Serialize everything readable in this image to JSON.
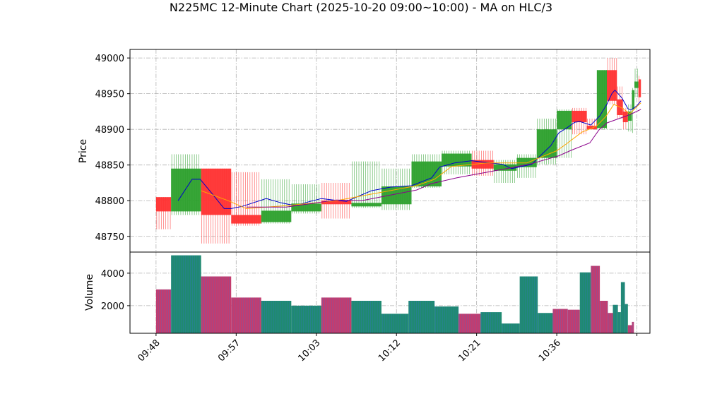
{
  "chart_data": {
    "type": "candlestick",
    "title": "N225MC 12-Minute Chart (2025-10-20 09:00~10:00) - MA on HLC/3",
    "xlabel": "",
    "price_panel": {
      "ylabel": "Price",
      "ylim": [
        48728,
        49012
      ],
      "yticks": [
        48750,
        48800,
        48850,
        48900,
        48950,
        49000
      ],
      "grid": true,
      "up_color": "#2ca02c",
      "down_color": "#ff3030",
      "candles": [
        {
          "t": 0,
          "w": 1.5,
          "open": 48805,
          "high": 48805,
          "low": 48760,
          "close": 48785
        },
        {
          "t": 1.5,
          "w": 3.0,
          "open": 48785,
          "high": 48865,
          "low": 48780,
          "close": 48845
        },
        {
          "t": 4.5,
          "w": 3.0,
          "open": 48845,
          "high": 48845,
          "low": 48740,
          "close": 48780
        },
        {
          "t": 7.5,
          "w": 3.0,
          "open": 48780,
          "high": 48840,
          "low": 48765,
          "close": 48768
        },
        {
          "t": 10.5,
          "w": 3.0,
          "open": 48770,
          "high": 48830,
          "low": 48768,
          "close": 48786
        },
        {
          "t": 13.5,
          "w": 3.0,
          "open": 48785,
          "high": 48823,
          "low": 48782,
          "close": 48796
        },
        {
          "t": 16.5,
          "w": 3.0,
          "open": 48800,
          "high": 48825,
          "low": 48775,
          "close": 48795
        },
        {
          "t": 19.5,
          "w": 3.0,
          "open": 48792,
          "high": 48855,
          "low": 48790,
          "close": 48797
        },
        {
          "t": 22.5,
          "w": 3.0,
          "open": 48795,
          "high": 48845,
          "low": 48787,
          "close": 48820
        },
        {
          "t": 25.5,
          "w": 3.0,
          "open": 48820,
          "high": 48865,
          "low": 48818,
          "close": 48855
        },
        {
          "t": 28.5,
          "w": 3.0,
          "open": 48848,
          "high": 48870,
          "low": 48837,
          "close": 48866
        },
        {
          "t": 31.5,
          "w": 2.2,
          "open": 48857,
          "high": 48870,
          "low": 48835,
          "close": 48845
        },
        {
          "t": 33.7,
          "w": 2.3,
          "open": 48842,
          "high": 48857,
          "low": 48825,
          "close": 48851
        },
        {
          "t": 36.0,
          "w": 2.0,
          "open": 48847,
          "high": 48865,
          "low": 48832,
          "close": 48860
        },
        {
          "t": 38.0,
          "w": 2.0,
          "open": 48860,
          "high": 48915,
          "low": 48851,
          "close": 48900
        },
        {
          "t": 40.0,
          "w": 1.5,
          "open": 48900,
          "high": 48928,
          "low": 48860,
          "close": 48926
        },
        {
          "t": 41.5,
          "w": 1.5,
          "open": 48926,
          "high": 48930,
          "low": 48893,
          "close": 48910
        },
        {
          "t": 43.0,
          "w": 1.0,
          "open": 48905,
          "high": 48915,
          "low": 48900,
          "close": 48900
        },
        {
          "t": 44.0,
          "w": 1.0,
          "open": 48902,
          "high": 48983,
          "low": 48900,
          "close": 48983
        },
        {
          "t": 45.0,
          "w": 1.0,
          "open": 48983,
          "high": 49000,
          "low": 48935,
          "close": 48940
        },
        {
          "t": 46.0,
          "w": 0.6,
          "open": 48942,
          "high": 48960,
          "low": 48915,
          "close": 48920
        },
        {
          "t": 46.6,
          "w": 0.5,
          "open": 48925,
          "high": 48930,
          "low": 48900,
          "close": 48910
        },
        {
          "t": 47.1,
          "w": 0.4,
          "open": 48912,
          "high": 48935,
          "low": 48897,
          "close": 48925
        },
        {
          "t": 47.5,
          "w": 0.25,
          "open": 48928,
          "high": 48958,
          "low": 48895,
          "close": 48955
        },
        {
          "t": 47.75,
          "w": 0.4,
          "open": 48958,
          "high": 48985,
          "low": 48945,
          "close": 48967
        },
        {
          "t": 48.15,
          "w": 0.25,
          "open": 48970,
          "high": 48975,
          "low": 48935,
          "close": 48945
        }
      ],
      "ma_lines": [
        {
          "color": "#0000cc",
          "points": [
            [
              2.2,
              48800
            ],
            [
              3.6,
              48830
            ],
            [
              4.4,
              48830
            ],
            [
              5.3,
              48815
            ],
            [
              6.8,
              48789
            ],
            [
              7.5,
              48789
            ],
            [
              8.6,
              48792
            ],
            [
              11.0,
              48803
            ],
            [
              12.5,
              48797
            ],
            [
              13.9,
              48793
            ],
            [
              15.1,
              48798
            ],
            [
              16.5,
              48803
            ],
            [
              17.7,
              48801
            ],
            [
              19.0,
              48799
            ],
            [
              21.5,
              48814
            ],
            [
              23.4,
              48819
            ],
            [
              25.5,
              48821
            ],
            [
              27.5,
              48832
            ],
            [
              28.3,
              48847
            ],
            [
              29.8,
              48853
            ],
            [
              31.5,
              48856
            ],
            [
              34.6,
              48851
            ],
            [
              35.5,
              48845
            ],
            [
              37.5,
              48851
            ],
            [
              38.5,
              48865
            ],
            [
              39.4,
              48877
            ],
            [
              40.2,
              48895
            ],
            [
              41.0,
              48902
            ],
            [
              41.8,
              48910
            ],
            [
              42.3,
              48911
            ],
            [
              43.4,
              48906
            ],
            [
              44.3,
              48919
            ],
            [
              45.0,
              48935
            ],
            [
              45.5,
              48950
            ],
            [
              45.8,
              48955
            ],
            [
              46.5,
              48944
            ],
            [
              47.1,
              48929
            ],
            [
              47.4,
              48927
            ],
            [
              48.0,
              48933
            ],
            [
              48.4,
              48940
            ]
          ]
        },
        {
          "color": "#ffa500",
          "points": [
            [
              4.5,
              48814
            ],
            [
              7.2,
              48800
            ],
            [
              9.0,
              48789
            ],
            [
              13.0,
              48793
            ],
            [
              18.0,
              48800
            ],
            [
              26.0,
              48821
            ],
            [
              27.8,
              48830
            ],
            [
              29.5,
              48848
            ],
            [
              33.0,
              48853
            ],
            [
              37.0,
              48853
            ],
            [
              40.0,
              48870
            ],
            [
              41.0,
              48880
            ],
            [
              42.5,
              48896
            ],
            [
              43.4,
              48901
            ],
            [
              44.0,
              48905
            ],
            [
              44.9,
              48918
            ],
            [
              45.7,
              48935
            ],
            [
              46.5,
              48930
            ],
            [
              47.3,
              48922
            ],
            [
              48.0,
              48932
            ],
            [
              48.4,
              48937
            ]
          ]
        },
        {
          "color": "#8b008b",
          "points": [
            [
              9.0,
              48791
            ],
            [
              13.0,
              48791
            ],
            [
              18.0,
              48801
            ],
            [
              20.5,
              48800
            ],
            [
              26.0,
              48815
            ],
            [
              27.5,
              48824
            ],
            [
              30.0,
              48832
            ],
            [
              31.5,
              48836
            ],
            [
              35.0,
              48845
            ],
            [
              37.5,
              48852
            ],
            [
              40.2,
              48863
            ],
            [
              41.5,
              48871
            ],
            [
              43.3,
              48881
            ],
            [
              44.2,
              48899
            ],
            [
              45.0,
              48909
            ],
            [
              46.2,
              48915
            ],
            [
              47.2,
              48920
            ],
            [
              48.4,
              48928
            ]
          ]
        }
      ]
    },
    "volume_panel": {
      "ylabel": "Volume",
      "ylim": [
        300,
        5300
      ],
      "yticks": [
        2000,
        4000
      ],
      "bar_up_color": "#1f8a70",
      "bar_down_color": "#c43c6e",
      "bars": [
        {
          "t": 0,
          "w": 1.5,
          "value": 3000,
          "dir": "down"
        },
        {
          "t": 1.5,
          "w": 3.0,
          "value": 5100,
          "dir": "up"
        },
        {
          "t": 4.5,
          "w": 3.0,
          "value": 3800,
          "dir": "down"
        },
        {
          "t": 7.5,
          "w": 3.0,
          "value": 2500,
          "dir": "down"
        },
        {
          "t": 10.5,
          "w": 3.0,
          "value": 2300,
          "dir": "up"
        },
        {
          "t": 13.5,
          "w": 3.0,
          "value": 2000,
          "dir": "up"
        },
        {
          "t": 16.5,
          "w": 3.0,
          "value": 2500,
          "dir": "down"
        },
        {
          "t": 19.5,
          "w": 3.0,
          "value": 2300,
          "dir": "up"
        },
        {
          "t": 22.5,
          "w": 2.7,
          "value": 1500,
          "dir": "up"
        },
        {
          "t": 25.2,
          "w": 2.6,
          "value": 2300,
          "dir": "up"
        },
        {
          "t": 27.8,
          "w": 2.4,
          "value": 1950,
          "dir": "up"
        },
        {
          "t": 30.2,
          "w": 2.2,
          "value": 1500,
          "dir": "down"
        },
        {
          "t": 32.4,
          "w": 2.1,
          "value": 1600,
          "dir": "up"
        },
        {
          "t": 34.5,
          "w": 1.8,
          "value": 900,
          "dir": "up"
        },
        {
          "t": 36.3,
          "w": 1.8,
          "value": 3800,
          "dir": "up"
        },
        {
          "t": 38.1,
          "w": 1.5,
          "value": 1550,
          "dir": "up"
        },
        {
          "t": 39.6,
          "w": 1.5,
          "value": 1800,
          "dir": "down"
        },
        {
          "t": 41.1,
          "w": 1.2,
          "value": 1750,
          "dir": "down"
        },
        {
          "t": 42.3,
          "w": 1.1,
          "value": 4050,
          "dir": "up"
        },
        {
          "t": 43.4,
          "w": 0.9,
          "value": 4450,
          "dir": "down"
        },
        {
          "t": 44.3,
          "w": 0.8,
          "value": 2300,
          "dir": "down"
        },
        {
          "t": 45.1,
          "w": 0.5,
          "value": 1550,
          "dir": "down"
        },
        {
          "t": 45.6,
          "w": 0.5,
          "value": 2050,
          "dir": "up"
        },
        {
          "t": 46.1,
          "w": 0.3,
          "value": 1600,
          "dir": "up"
        },
        {
          "t": 46.4,
          "w": 0.4,
          "value": 3450,
          "dir": "up"
        },
        {
          "t": 46.8,
          "w": 0.3,
          "value": 2100,
          "dir": "up"
        },
        {
          "t": 47.1,
          "w": 0.4,
          "value": 800,
          "dir": "down"
        },
        {
          "t": 47.5,
          "w": 0.2,
          "value": 1000,
          "dir": "down"
        }
      ]
    },
    "x_axis": {
      "xlim": [
        -2.6,
        49.3
      ],
      "ticks": [
        {
          "t": 0,
          "label": "09:48"
        },
        {
          "t": 8,
          "label": "09:57"
        },
        {
          "t": 16,
          "label": "10:03"
        },
        {
          "t": 24,
          "label": "10:12"
        },
        {
          "t": 32,
          "label": "10:21"
        },
        {
          "t": 40,
          "label": "10:36"
        },
        {
          "t": 48,
          "label": ""
        }
      ]
    }
  }
}
